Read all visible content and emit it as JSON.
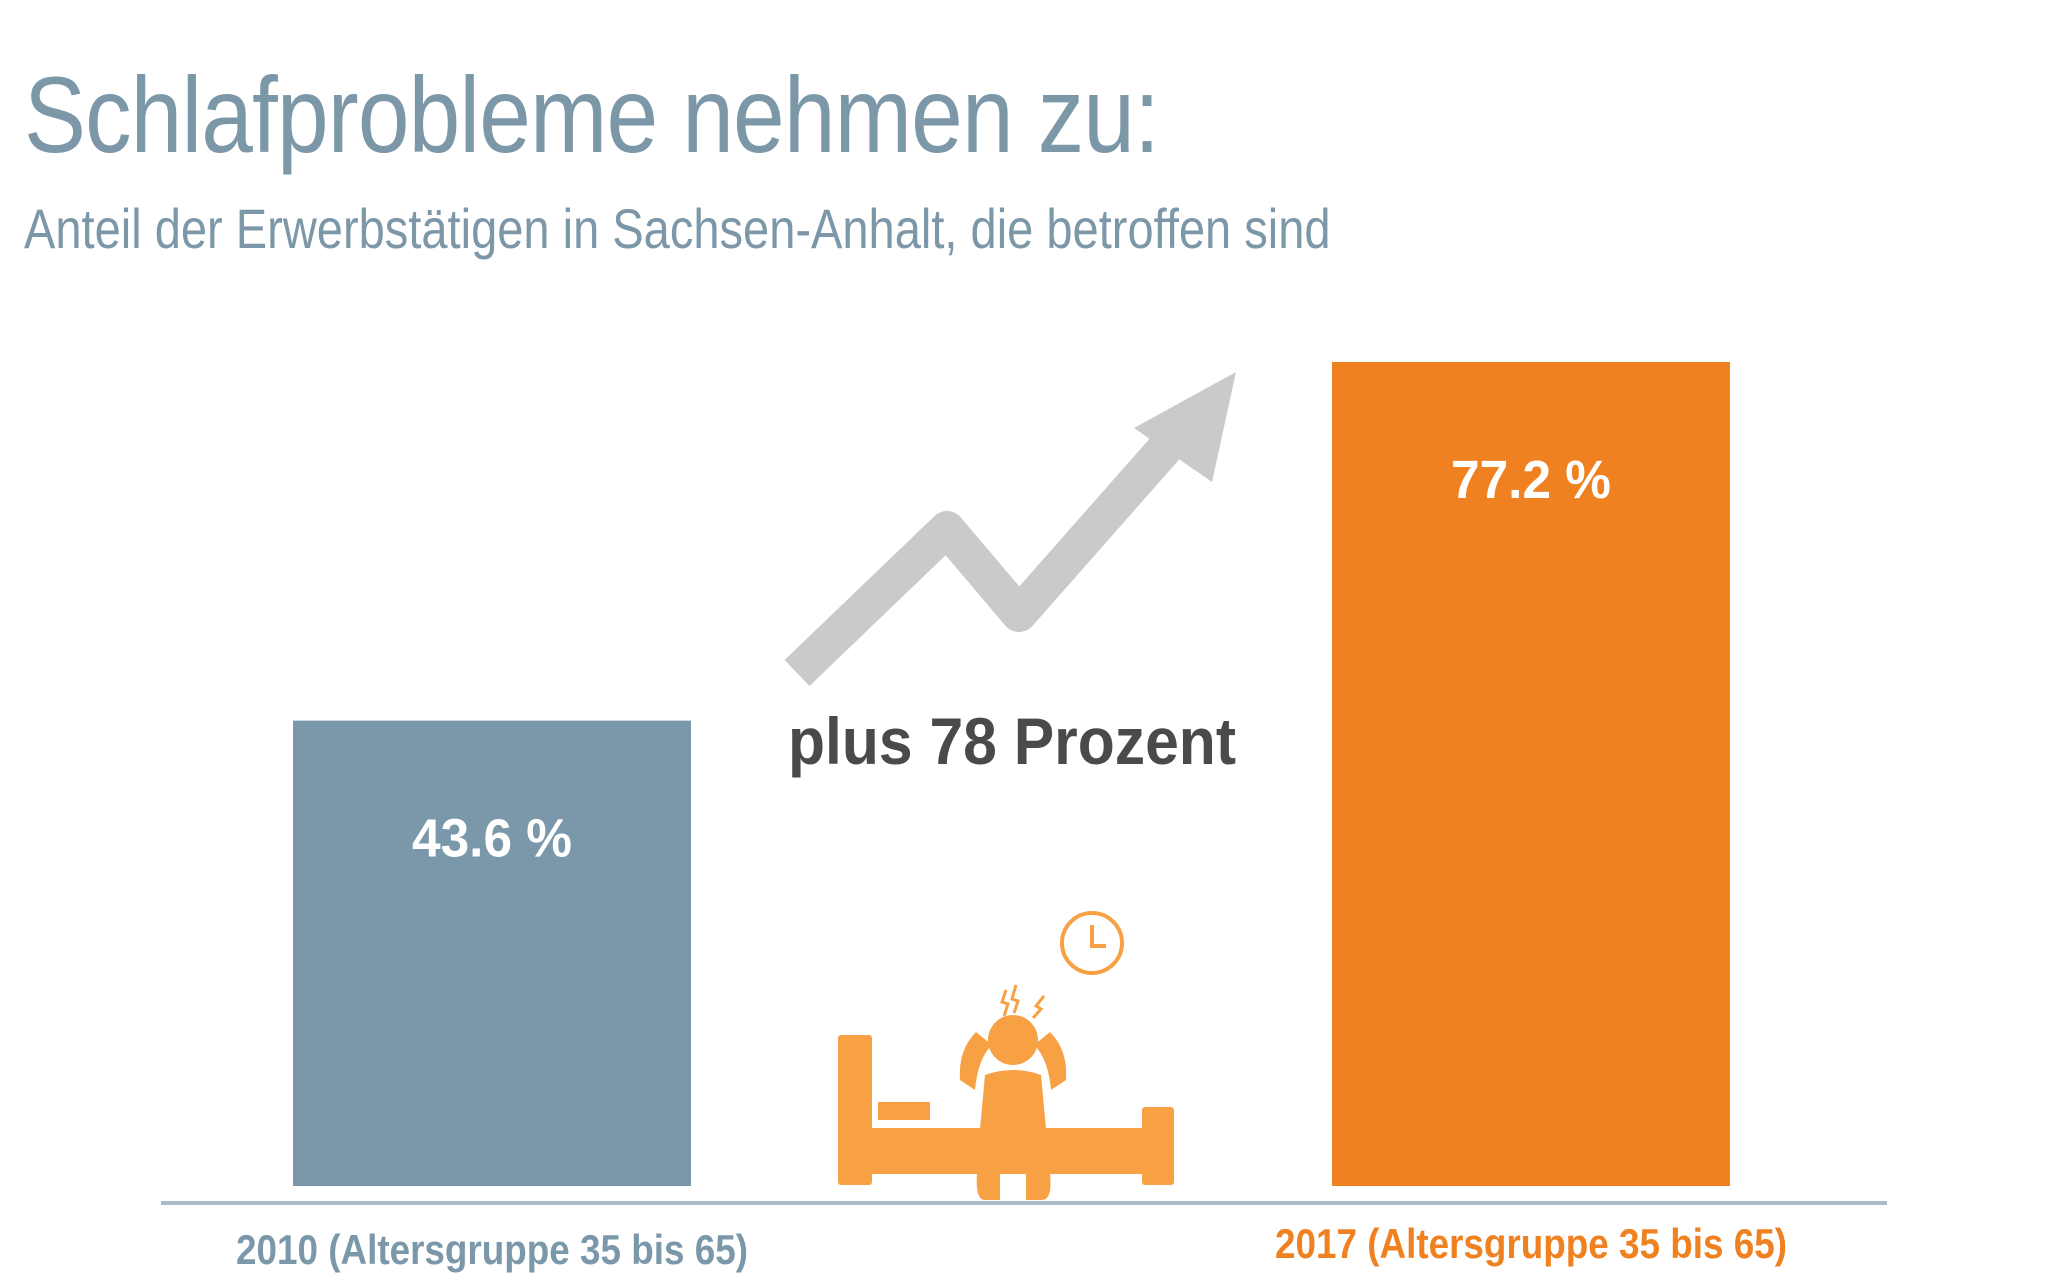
{
  "chart_data": {
    "type": "bar",
    "title": "Schlafprobleme nehmen zu:",
    "subtitle": "Anteil der Erwerbstätigen in Sachsen-Anhalt, die betroffen sind",
    "categories": [
      "2010 (Altersgruppe 35 bis 65)",
      "2017 (Altersgruppe 35 bis 65)"
    ],
    "values": [
      43.6,
      77.2
    ],
    "value_labels": [
      "43.6 %",
      "77.2 %"
    ],
    "colors": [
      "#7b98aa",
      "#f08121"
    ],
    "label_colors": [
      "#7b98aa",
      "#f08121"
    ],
    "annotation": "plus 78 Prozent",
    "xlabel": "",
    "ylabel": "",
    "ylim": [
      0,
      100
    ],
    "grid": false
  },
  "colors": {
    "title": "#7c97a8",
    "arrow": "#c9cacc",
    "figure": "#f7a144",
    "annotation": "#4a4a4a",
    "axis": "#a9bcc7"
  }
}
